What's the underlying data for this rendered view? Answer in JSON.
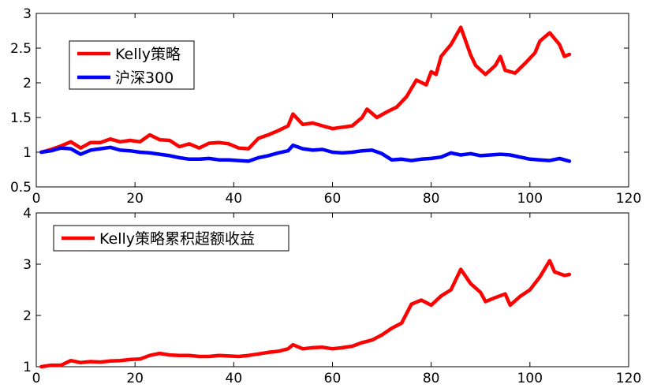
{
  "chart_data": [
    {
      "type": "line",
      "title": "",
      "xlabel": "",
      "ylabel": "",
      "xlim": [
        0,
        120
      ],
      "ylim": [
        0.5,
        3
      ],
      "xticks": [
        0,
        20,
        40,
        60,
        80,
        100,
        120
      ],
      "yticks": [
        0.5,
        1,
        1.5,
        2,
        2.5,
        3
      ],
      "ytick_labels": [
        "0.5",
        "1",
        "1.5",
        "2",
        "2.5",
        "3"
      ],
      "grid": false,
      "legend_position": "top-left",
      "series": [
        {
          "name": "Kelly策略",
          "color": "#ff0000",
          "points": [
            [
              1,
              1.0
            ],
            [
              3,
              1.04
            ],
            [
              5,
              1.09
            ],
            [
              7,
              1.15
            ],
            [
              9,
              1.06
            ],
            [
              11,
              1.14
            ],
            [
              13,
              1.14
            ],
            [
              15,
              1.19
            ],
            [
              17,
              1.15
            ],
            [
              19,
              1.17
            ],
            [
              21,
              1.15
            ],
            [
              23,
              1.25
            ],
            [
              25,
              1.18
            ],
            [
              27,
              1.17
            ],
            [
              29,
              1.08
            ],
            [
              31,
              1.12
            ],
            [
              33,
              1.06
            ],
            [
              35,
              1.13
            ],
            [
              37,
              1.14
            ],
            [
              39,
              1.12
            ],
            [
              41,
              1.06
            ],
            [
              43,
              1.05
            ],
            [
              45,
              1.2
            ],
            [
              47,
              1.25
            ],
            [
              49,
              1.31
            ],
            [
              51,
              1.38
            ],
            [
              52,
              1.55
            ],
            [
              54,
              1.4
            ],
            [
              56,
              1.42
            ],
            [
              58,
              1.38
            ],
            [
              60,
              1.34
            ],
            [
              62,
              1.36
            ],
            [
              64,
              1.38
            ],
            [
              66,
              1.5
            ],
            [
              67,
              1.62
            ],
            [
              69,
              1.5
            ],
            [
              71,
              1.58
            ],
            [
              73,
              1.65
            ],
            [
              75,
              1.8
            ],
            [
              77,
              2.04
            ],
            [
              79,
              1.97
            ],
            [
              80,
              2.16
            ],
            [
              81,
              2.12
            ],
            [
              82,
              2.38
            ],
            [
              84,
              2.55
            ],
            [
              86,
              2.8
            ],
            [
              88,
              2.4
            ],
            [
              89,
              2.25
            ],
            [
              91,
              2.12
            ],
            [
              93,
              2.25
            ],
            [
              94,
              2.38
            ],
            [
              95,
              2.18
            ],
            [
              97,
              2.14
            ],
            [
              99,
              2.28
            ],
            [
              101,
              2.43
            ],
            [
              102,
              2.6
            ],
            [
              104,
              2.72
            ],
            [
              106,
              2.55
            ],
            [
              107,
              2.38
            ],
            [
              108,
              2.41
            ]
          ]
        },
        {
          "name": "沪深300",
          "color": "#0000ff",
          "points": [
            [
              1,
              1.0
            ],
            [
              3,
              1.02
            ],
            [
              5,
              1.06
            ],
            [
              7,
              1.05
            ],
            [
              9,
              0.97
            ],
            [
              11,
              1.03
            ],
            [
              13,
              1.05
            ],
            [
              15,
              1.07
            ],
            [
              17,
              1.03
            ],
            [
              19,
              1.02
            ],
            [
              21,
              1.0
            ],
            [
              23,
              0.99
            ],
            [
              25,
              0.97
            ],
            [
              27,
              0.95
            ],
            [
              29,
              0.92
            ],
            [
              31,
              0.9
            ],
            [
              33,
              0.9
            ],
            [
              35,
              0.91
            ],
            [
              37,
              0.89
            ],
            [
              39,
              0.89
            ],
            [
              41,
              0.88
            ],
            [
              43,
              0.87
            ],
            [
              45,
              0.92
            ],
            [
              47,
              0.95
            ],
            [
              49,
              0.99
            ],
            [
              51,
              1.02
            ],
            [
              52,
              1.1
            ],
            [
              54,
              1.05
            ],
            [
              56,
              1.03
            ],
            [
              58,
              1.04
            ],
            [
              60,
              1.0
            ],
            [
              62,
              0.99
            ],
            [
              64,
              1.0
            ],
            [
              66,
              1.02
            ],
            [
              68,
              1.03
            ],
            [
              70,
              0.98
            ],
            [
              72,
              0.89
            ],
            [
              74,
              0.9
            ],
            [
              76,
              0.88
            ],
            [
              78,
              0.9
            ],
            [
              80,
              0.91
            ],
            [
              82,
              0.93
            ],
            [
              84,
              0.99
            ],
            [
              86,
              0.96
            ],
            [
              88,
              0.98
            ],
            [
              90,
              0.95
            ],
            [
              92,
              0.96
            ],
            [
              94,
              0.97
            ],
            [
              96,
              0.96
            ],
            [
              98,
              0.93
            ],
            [
              100,
              0.9
            ],
            [
              102,
              0.89
            ],
            [
              104,
              0.88
            ],
            [
              106,
              0.91
            ],
            [
              108,
              0.87
            ]
          ]
        }
      ]
    },
    {
      "type": "line",
      "title": "",
      "xlabel": "",
      "ylabel": "",
      "xlim": [
        0,
        120
      ],
      "ylim": [
        1,
        4
      ],
      "xticks": [
        0,
        20,
        40,
        60,
        80,
        100,
        120
      ],
      "yticks": [
        1,
        2,
        3,
        4
      ],
      "ytick_labels": [
        "1",
        "2",
        "3",
        "4"
      ],
      "grid": false,
      "legend_position": "top-left",
      "series": [
        {
          "name": "Kelly策略累积超额收益",
          "color": "#ff0000",
          "points": [
            [
              1,
              1.0
            ],
            [
              3,
              1.03
            ],
            [
              5,
              1.03
            ],
            [
              7,
              1.12
            ],
            [
              9,
              1.08
            ],
            [
              11,
              1.1
            ],
            [
              13,
              1.09
            ],
            [
              15,
              1.11
            ],
            [
              17,
              1.12
            ],
            [
              19,
              1.14
            ],
            [
              21,
              1.15
            ],
            [
              23,
              1.22
            ],
            [
              25,
              1.26
            ],
            [
              27,
              1.23
            ],
            [
              29,
              1.22
            ],
            [
              31,
              1.22
            ],
            [
              33,
              1.2
            ],
            [
              35,
              1.2
            ],
            [
              37,
              1.22
            ],
            [
              39,
              1.21
            ],
            [
              41,
              1.2
            ],
            [
              43,
              1.22
            ],
            [
              45,
              1.25
            ],
            [
              47,
              1.28
            ],
            [
              49,
              1.3
            ],
            [
              51,
              1.35
            ],
            [
              52,
              1.43
            ],
            [
              54,
              1.35
            ],
            [
              56,
              1.37
            ],
            [
              58,
              1.38
            ],
            [
              60,
              1.35
            ],
            [
              62,
              1.37
            ],
            [
              64,
              1.4
            ],
            [
              66,
              1.47
            ],
            [
              68,
              1.52
            ],
            [
              70,
              1.62
            ],
            [
              72,
              1.75
            ],
            [
              74,
              1.85
            ],
            [
              76,
              2.22
            ],
            [
              78,
              2.3
            ],
            [
              80,
              2.2
            ],
            [
              82,
              2.38
            ],
            [
              84,
              2.5
            ],
            [
              86,
              2.9
            ],
            [
              88,
              2.62
            ],
            [
              90,
              2.45
            ],
            [
              91,
              2.27
            ],
            [
              93,
              2.35
            ],
            [
              95,
              2.42
            ],
            [
              96,
              2.2
            ],
            [
              98,
              2.37
            ],
            [
              100,
              2.5
            ],
            [
              102,
              2.75
            ],
            [
              104,
              3.07
            ],
            [
              105,
              2.85
            ],
            [
              107,
              2.78
            ],
            [
              108,
              2.8
            ]
          ]
        }
      ]
    }
  ]
}
